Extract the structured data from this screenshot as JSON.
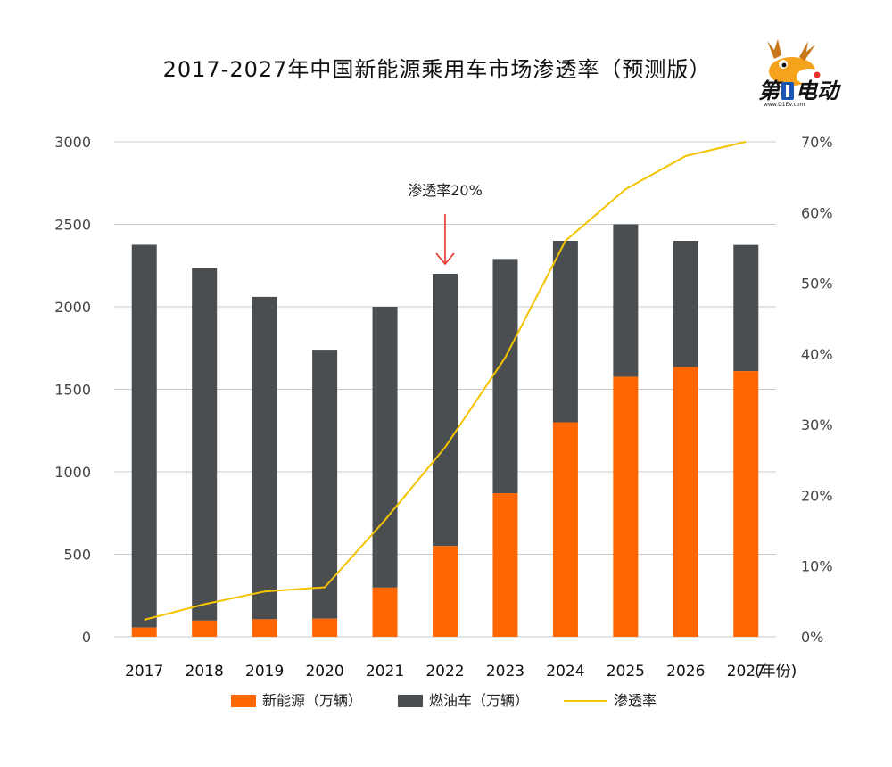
{
  "logo": {
    "text_left": "第",
    "text_right": "电动",
    "url": "www.D1EV.com"
  },
  "chart_data": {
    "type": "bar",
    "stacked": true,
    "title": "2017-2027年中国新能源乘用车市场渗透率（预测版）",
    "categories": [
      "2017",
      "2018",
      "2019",
      "2020",
      "2021",
      "2022",
      "2023",
      "2024",
      "2025",
      "2026",
      "2027"
    ],
    "x_unit_label": "(年份)",
    "ylim": [
      0,
      3000
    ],
    "yticks": [
      "0",
      "500",
      "1000",
      "1500",
      "2000",
      "2500",
      "3000"
    ],
    "y2lim": [
      0,
      70
    ],
    "y2ticks": [
      "0%",
      "10%",
      "20%",
      "30%",
      "40%",
      "50%",
      "60%",
      "70%"
    ],
    "grid": true,
    "legend_position": "bottom",
    "series": [
      {
        "name": "新能源（万辆）",
        "type": "bar",
        "axis": "left",
        "color": "#ff6600",
        "values": [
          56,
          98,
          106,
          110,
          298,
          550,
          870,
          1300,
          1575,
          1635,
          1610
        ]
      },
      {
        "name": "燃油车（万辆）",
        "type": "bar",
        "axis": "left",
        "color": "#4a4e51",
        "values": [
          2320,
          2137,
          1954,
          1630,
          1702,
          1650,
          1420,
          1100,
          925,
          765,
          765
        ]
      },
      {
        "name": "渗透率",
        "type": "line",
        "axis": "right",
        "color": "#f5c400",
        "values": [
          2.4,
          4.6,
          6.4,
          7.0,
          16.5,
          26.8,
          39.5,
          56.0,
          63.3,
          68.0,
          70.0
        ]
      }
    ],
    "annotation": {
      "text": "渗透率20%",
      "category": "2022",
      "arrow_color": "#e8332a"
    }
  }
}
